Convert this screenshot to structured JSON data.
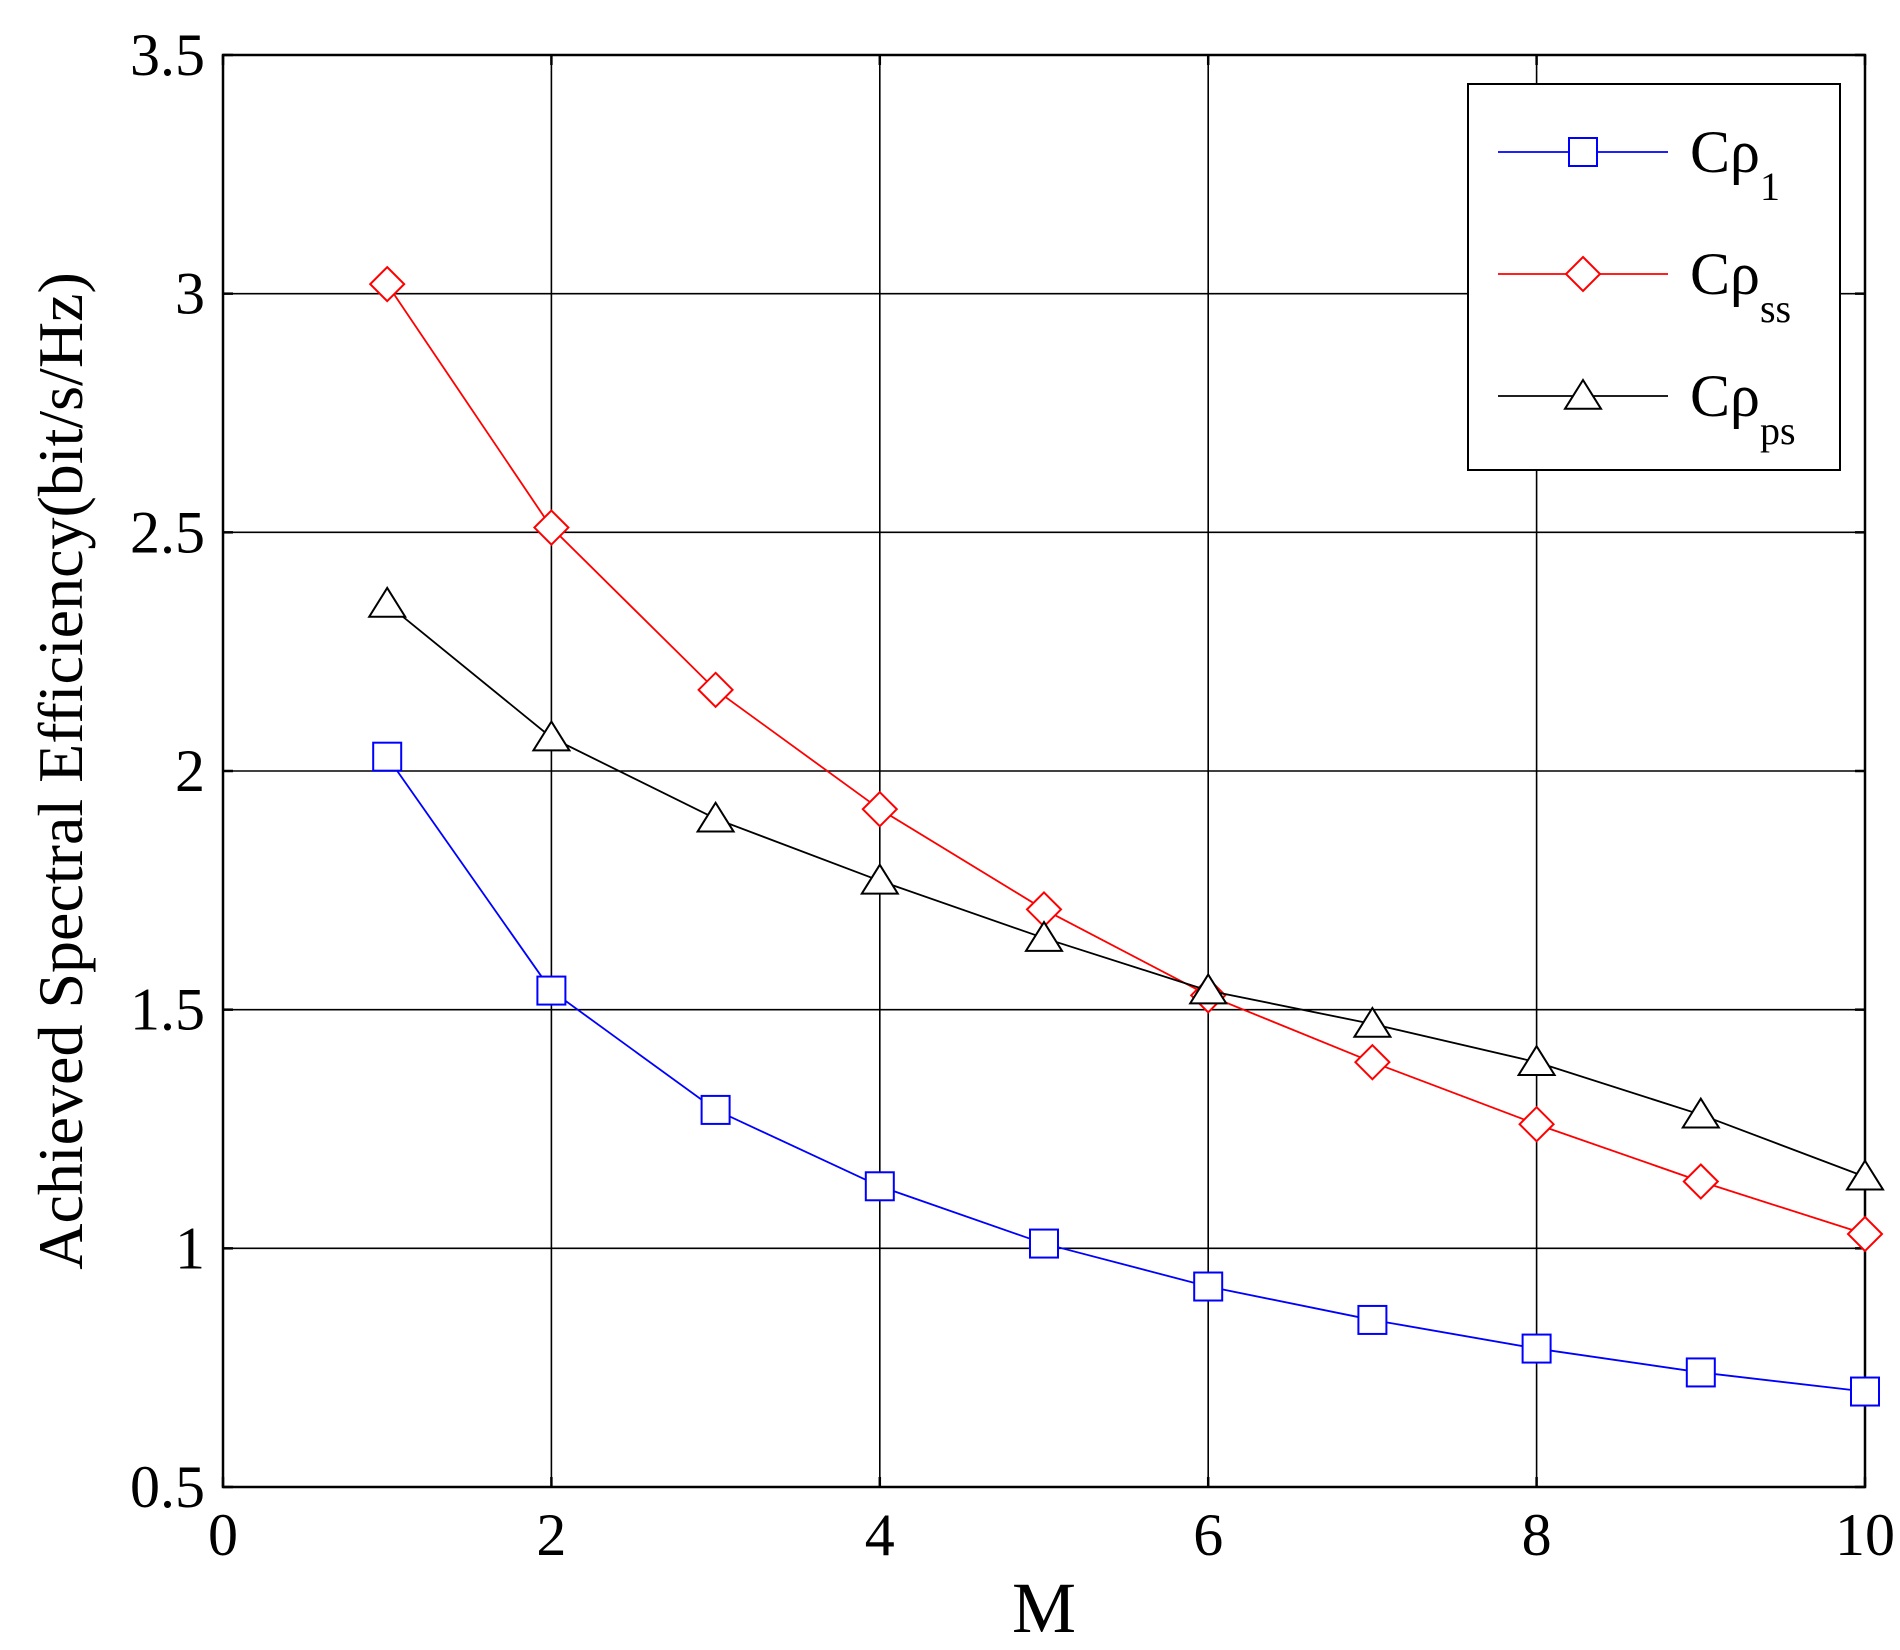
{
  "chart_data": {
    "type": "line",
    "xlabel": "M",
    "ylabel": "Achieved Spectral Efficiency(bit/s/Hz)",
    "xlim": [
      0,
      10
    ],
    "ylim": [
      0.5,
      3.5
    ],
    "xticks": [
      0,
      2,
      4,
      6,
      8,
      10
    ],
    "yticks": [
      0.5,
      1,
      1.5,
      2,
      2.5,
      3,
      3.5
    ],
    "xtick_labels": [
      "0",
      "2",
      "4",
      "6",
      "8",
      "10"
    ],
    "ytick_labels": [
      "0.5",
      "1",
      "1.5",
      "2",
      "2.5",
      "3",
      "3.5"
    ],
    "grid": true,
    "legend_position": "top-right",
    "x": [
      1,
      2,
      3,
      4,
      5,
      6,
      7,
      8,
      9,
      10
    ],
    "series": [
      {
        "name": "Cρ1",
        "name_main": "Cρ",
        "name_sub": "1",
        "color": "#0000ff",
        "marker": "square",
        "values": [
          2.03,
          1.54,
          1.29,
          1.13,
          1.01,
          0.92,
          0.85,
          0.79,
          0.74,
          0.7
        ]
      },
      {
        "name": "Cρss",
        "name_main": "Cρ",
        "name_sub": "ss",
        "color": "#ff0000",
        "marker": "diamond",
        "values": [
          3.02,
          2.51,
          2.17,
          1.92,
          1.71,
          1.53,
          1.39,
          1.26,
          1.14,
          1.03
        ]
      },
      {
        "name": "Cρps",
        "name_main": "Cρ",
        "name_sub": "ps",
        "color": "#000000",
        "marker": "triangle",
        "values": [
          2.35,
          2.07,
          1.9,
          1.77,
          1.65,
          1.54,
          1.47,
          1.39,
          1.28,
          1.15
        ]
      }
    ]
  }
}
